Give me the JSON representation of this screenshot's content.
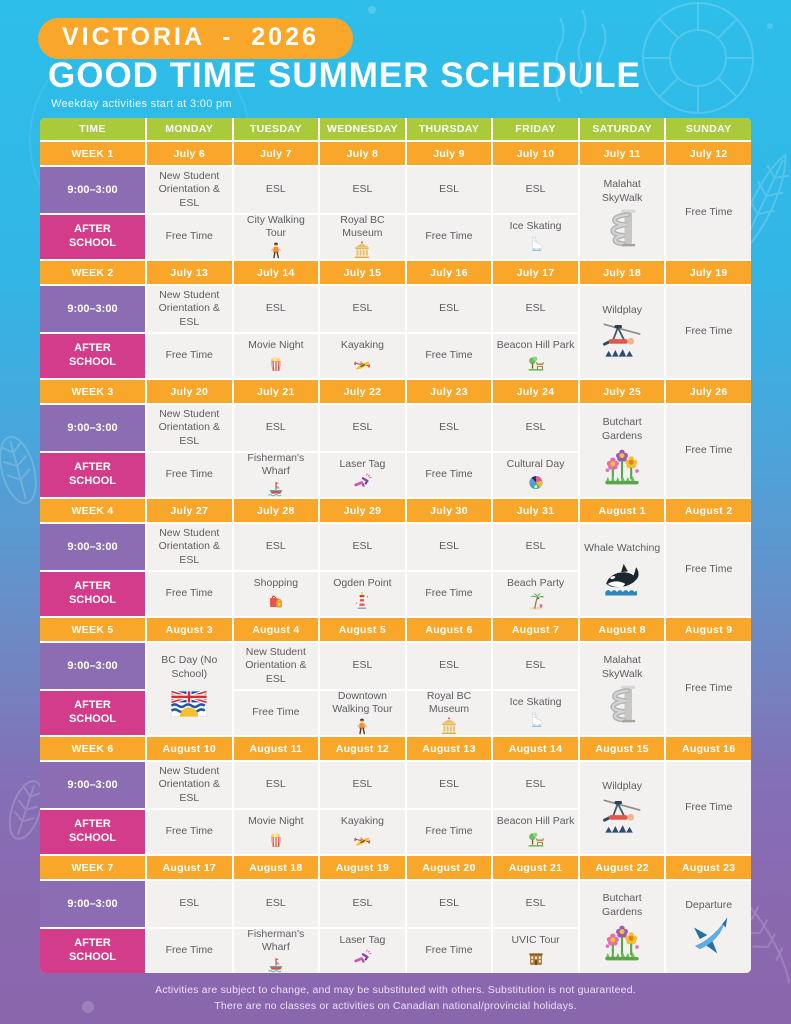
{
  "header": {
    "badge": "VICTORIA - 2026",
    "title": "GOOD TIME SUMMER SCHEDULE",
    "subtitle": "Weekday activities start at 3:00 pm"
  },
  "table": {
    "columns": [
      "TIME",
      "MONDAY",
      "TUESDAY",
      "WEDNESDAY",
      "THURSDAY",
      "FRIDAY",
      "SATURDAY",
      "SUNDAY"
    ],
    "row_labels": {
      "morning": "9:00–3:00",
      "afternoon": "AFTER SCHOOL"
    },
    "weeks": [
      {
        "label": "WEEK 1",
        "dates": [
          "July 6",
          "July 7",
          "July 8",
          "July 9",
          "July 10",
          "July 11",
          "July 12"
        ],
        "cells": [
          {
            "day": 0,
            "row": "morning",
            "text": "New Student Orientation & ESL"
          },
          {
            "day": 0,
            "row": "afternoon",
            "text": "Free Time"
          },
          {
            "day": 1,
            "row": "morning",
            "text": "ESL"
          },
          {
            "day": 1,
            "row": "afternoon",
            "text": "City Walking Tour",
            "icon": "walking-person"
          },
          {
            "day": 2,
            "row": "morning",
            "text": "ESL"
          },
          {
            "day": 2,
            "row": "afternoon",
            "text": "Royal BC Museum",
            "icon": "museum"
          },
          {
            "day": 3,
            "row": "morning",
            "text": "ESL"
          },
          {
            "day": 3,
            "row": "afternoon",
            "text": "Free Time"
          },
          {
            "day": 4,
            "row": "morning",
            "text": "ESL"
          },
          {
            "day": 4,
            "row": "afternoon",
            "text": "Ice Skating",
            "icon": "ice-skate"
          },
          {
            "day": 5,
            "row": "full",
            "text": "Malahat SkyWalk",
            "icon": "skywalk"
          },
          {
            "day": 6,
            "row": "full",
            "text": "Free Time"
          }
        ]
      },
      {
        "label": "WEEK 2",
        "dates": [
          "July 13",
          "July 14",
          "July 15",
          "July 16",
          "July 17",
          "July 18",
          "July 19"
        ],
        "cells": [
          {
            "day": 0,
            "row": "morning",
            "text": "New Student Orientation & ESL"
          },
          {
            "day": 0,
            "row": "afternoon",
            "text": "Free Time"
          },
          {
            "day": 1,
            "row": "morning",
            "text": "ESL"
          },
          {
            "day": 1,
            "row": "afternoon",
            "text": "Movie Night",
            "icon": "popcorn"
          },
          {
            "day": 2,
            "row": "morning",
            "text": "ESL"
          },
          {
            "day": 2,
            "row": "afternoon",
            "text": "Kayaking",
            "icon": "kayak"
          },
          {
            "day": 3,
            "row": "morning",
            "text": "ESL"
          },
          {
            "day": 3,
            "row": "afternoon",
            "text": "Free Time"
          },
          {
            "day": 4,
            "row": "morning",
            "text": "ESL"
          },
          {
            "day": 4,
            "row": "afternoon",
            "text": "Beacon Hill Park",
            "icon": "park"
          },
          {
            "day": 5,
            "row": "full",
            "text": "Wildplay",
            "icon": "zipline"
          },
          {
            "day": 6,
            "row": "full",
            "text": "Free Time"
          }
        ]
      },
      {
        "label": "WEEK 3",
        "dates": [
          "July 20",
          "July 21",
          "July 22",
          "July 23",
          "July 24",
          "July 25",
          "July 26"
        ],
        "cells": [
          {
            "day": 0,
            "row": "morning",
            "text": "New Student Orientation & ESL"
          },
          {
            "day": 0,
            "row": "afternoon",
            "text": "Free Time"
          },
          {
            "day": 1,
            "row": "morning",
            "text": "ESL"
          },
          {
            "day": 1,
            "row": "afternoon",
            "text": "Fisherman's Wharf",
            "icon": "boat"
          },
          {
            "day": 2,
            "row": "morning",
            "text": "ESL"
          },
          {
            "day": 2,
            "row": "afternoon",
            "text": "Laser Tag",
            "icon": "laser-tag"
          },
          {
            "day": 3,
            "row": "morning",
            "text": "ESL"
          },
          {
            "day": 3,
            "row": "afternoon",
            "text": "Free Time"
          },
          {
            "day": 4,
            "row": "morning",
            "text": "ESL"
          },
          {
            "day": 4,
            "row": "afternoon",
            "text": "Cultural Day",
            "icon": "cultural-globe"
          },
          {
            "day": 5,
            "row": "full",
            "text": "Butchart Gardens",
            "icon": "flowers"
          },
          {
            "day": 6,
            "row": "full",
            "text": "Free Time"
          }
        ]
      },
      {
        "label": "WEEK 4",
        "dates": [
          "July 27",
          "July 28",
          "July 29",
          "July 30",
          "July 31",
          "August 1",
          "August 2"
        ],
        "cells": [
          {
            "day": 0,
            "row": "morning",
            "text": "New Student Orientation & ESL"
          },
          {
            "day": 0,
            "row": "afternoon",
            "text": "Free Time"
          },
          {
            "day": 1,
            "row": "morning",
            "text": "ESL"
          },
          {
            "day": 1,
            "row": "afternoon",
            "text": "Shopping",
            "icon": "shopping-bags"
          },
          {
            "day": 2,
            "row": "morning",
            "text": "ESL"
          },
          {
            "day": 2,
            "row": "afternoon",
            "text": "Ogden Point",
            "icon": "lighthouse"
          },
          {
            "day": 3,
            "row": "morning",
            "text": "ESL"
          },
          {
            "day": 3,
            "row": "afternoon",
            "text": "Free Time"
          },
          {
            "day": 4,
            "row": "morning",
            "text": "ESL"
          },
          {
            "day": 4,
            "row": "afternoon",
            "text": "Beach Party",
            "icon": "palm-tree"
          },
          {
            "day": 5,
            "row": "full",
            "text": "Whale Watching",
            "icon": "orca"
          },
          {
            "day": 6,
            "row": "full",
            "text": "Free Time"
          }
        ]
      },
      {
        "label": "WEEK 5",
        "dates": [
          "August 3",
          "August 4",
          "August 5",
          "August 6",
          "August 7",
          "August 8",
          "August 9"
        ],
        "cells": [
          {
            "day": 0,
            "row": "full",
            "text": "BC Day (No School)",
            "icon": "bc-flag"
          },
          {
            "day": 1,
            "row": "morning",
            "text": "New Student Orientation & ESL"
          },
          {
            "day": 1,
            "row": "afternoon",
            "text": "Free Time"
          },
          {
            "day": 2,
            "row": "morning",
            "text": "ESL"
          },
          {
            "day": 2,
            "row": "afternoon",
            "text": "Downtown Walking Tour",
            "icon": "walking-person"
          },
          {
            "day": 3,
            "row": "morning",
            "text": "ESL"
          },
          {
            "day": 3,
            "row": "afternoon",
            "text": "Royal BC Museum",
            "icon": "museum"
          },
          {
            "day": 4,
            "row": "morning",
            "text": "ESL"
          },
          {
            "day": 4,
            "row": "afternoon",
            "text": "Ice Skating",
            "icon": "ice-skate"
          },
          {
            "day": 5,
            "row": "full",
            "text": "Malahat SkyWalk",
            "icon": "skywalk"
          },
          {
            "day": 6,
            "row": "full",
            "text": "Free Time"
          }
        ]
      },
      {
        "label": "WEEK 6",
        "dates": [
          "August 10",
          "August 11",
          "August 12",
          "August 13",
          "August 14",
          "August 15",
          "August 16"
        ],
        "cells": [
          {
            "day": 0,
            "row": "morning",
            "text": "New Student Orientation & ESL"
          },
          {
            "day": 0,
            "row": "afternoon",
            "text": "Free Time"
          },
          {
            "day": 1,
            "row": "morning",
            "text": "ESL"
          },
          {
            "day": 1,
            "row": "afternoon",
            "text": "Movie Night",
            "icon": "popcorn"
          },
          {
            "day": 2,
            "row": "morning",
            "text": "ESL"
          },
          {
            "day": 2,
            "row": "afternoon",
            "text": "Kayaking",
            "icon": "kayak"
          },
          {
            "day": 3,
            "row": "morning",
            "text": "ESL"
          },
          {
            "day": 3,
            "row": "afternoon",
            "text": "Free Time"
          },
          {
            "day": 4,
            "row": "morning",
            "text": "ESL"
          },
          {
            "day": 4,
            "row": "afternoon",
            "text": "Beacon Hill Park",
            "icon": "park"
          },
          {
            "day": 5,
            "row": "full",
            "text": "Wildplay",
            "icon": "zipline"
          },
          {
            "day": 6,
            "row": "full",
            "text": "Free Time"
          }
        ]
      },
      {
        "label": "WEEK 7",
        "dates": [
          "August 17",
          "August 18",
          "August 19",
          "August 20",
          "August 21",
          "August 22",
          "August 23"
        ],
        "cells": [
          {
            "day": 0,
            "row": "morning",
            "text": "ESL"
          },
          {
            "day": 0,
            "row": "afternoon",
            "text": "Free Time"
          },
          {
            "day": 1,
            "row": "morning",
            "text": "ESL"
          },
          {
            "day": 1,
            "row": "afternoon",
            "text": "Fisherman's Wharf",
            "icon": "boat"
          },
          {
            "day": 2,
            "row": "morning",
            "text": "ESL"
          },
          {
            "day": 2,
            "row": "afternoon",
            "text": "Laser Tag",
            "icon": "laser-tag"
          },
          {
            "day": 3,
            "row": "morning",
            "text": "ESL"
          },
          {
            "day": 3,
            "row": "afternoon",
            "text": "Free Time"
          },
          {
            "day": 4,
            "row": "morning",
            "text": "ESL"
          },
          {
            "day": 4,
            "row": "afternoon",
            "text": "UVIC Tour",
            "icon": "uvic-building"
          },
          {
            "day": 5,
            "row": "full",
            "text": "Butchart Gardens",
            "icon": "flowers"
          },
          {
            "day": 6,
            "row": "full",
            "text": "Departure",
            "icon": "airplane"
          }
        ]
      }
    ]
  },
  "footer": {
    "line1": "Activities are subject to change, and may be substituted with others. Substitution is not guaranteed.",
    "line2": "There are no classes or activities on Canadian national/provincial holidays."
  },
  "colors": {
    "accent_orange": "#f9a72b",
    "header_green": "#a9ca3b",
    "time_purple": "#8c6cb2",
    "after_school_pink": "#d23c8a",
    "cell_bg": "#f2f1ef",
    "bg_top": "#2dbee9",
    "bg_bottom": "#8a66ad"
  }
}
